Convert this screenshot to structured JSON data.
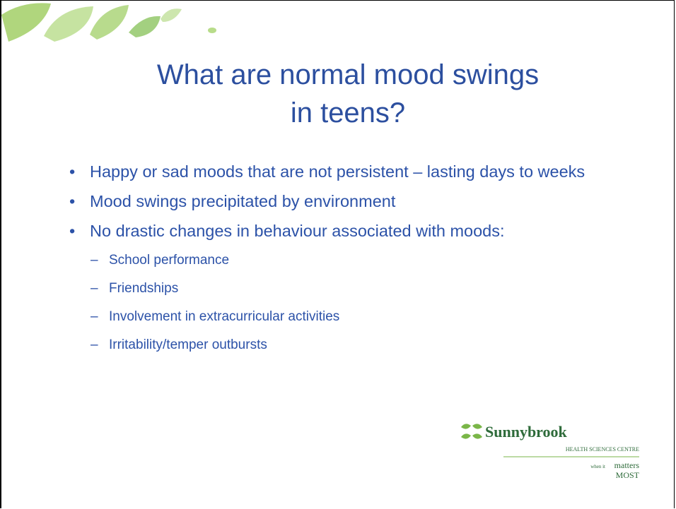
{
  "slide": {
    "title": "What are normal mood swings in teens?",
    "bullets": [
      {
        "text": "Happy or sad moods that are not persistent – lasting days to weeks",
        "sub": []
      },
      {
        "text": "Mood swings precipitated by environment",
        "sub": []
      },
      {
        "text": "No drastic changes in behaviour associated with moods:",
        "sub": [
          "School performance",
          "Friendships",
          "Involvement in extracurricular activities",
          "Irritability/temper outbursts"
        ]
      }
    ],
    "logo": {
      "name": "Sunnybrook",
      "subtitle": "HEALTH SCIENCES CENTRE",
      "tagline_small": "when it",
      "tagline": "matters",
      "tagline_big": "MOST"
    }
  }
}
